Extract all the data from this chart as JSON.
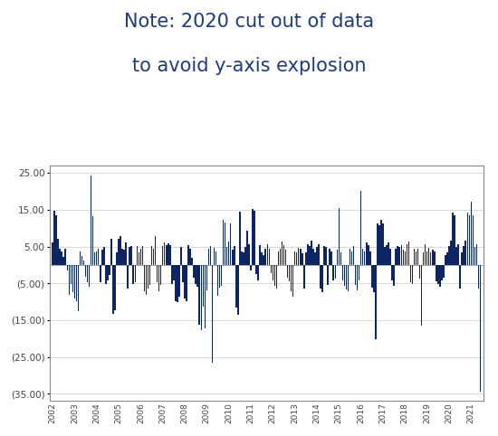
{
  "title_line1": "Note: 2020 cut out of data",
  "title_line2": "to avoid y-axis explosion",
  "title_color": "#1f3d7a",
  "title_fontsize": 15,
  "bar_color": "#0d2663",
  "background_color": "#ffffff",
  "ylim": [
    -37,
    27
  ],
  "yticks": [
    25.0,
    15.0,
    5.0,
    -5.0,
    -15.0,
    -25.0,
    -35.0
  ],
  "ytick_labels": [
    "25.00",
    "15.00",
    "5.00",
    "(5.00)",
    "(15.00)",
    "(25.00)",
    "(35.00)"
  ],
  "monthly_values": [
    6.2,
    14.7,
    13.6,
    7.2,
    4.5,
    3.8,
    2.1,
    4.3,
    -1.5,
    -8.2,
    -5.2,
    -7.3,
    -9.1,
    -9.8,
    -12.5,
    3.8,
    2.4,
    1.2,
    -3.3,
    -4.7,
    -5.8,
    24.3,
    13.2,
    3.5,
    3.8,
    4.3,
    -4.6,
    4.2,
    4.9,
    -5.1,
    -4.3,
    -2.8,
    7.2,
    -13.2,
    -12.3,
    3.5,
    7.1,
    7.8,
    4.5,
    4.1,
    6.2,
    -6.3,
    4.8,
    5.2,
    -5.1,
    -4.8,
    5.1,
    3.5,
    4.3,
    5.1,
    -7.2,
    -8.1,
    -6.3,
    -5.5,
    5.1,
    4.4,
    7.8,
    -4.7,
    -7.2,
    -5.4,
    5.1,
    6.2,
    5.3,
    5.8,
    5.3,
    -5.2,
    -4.1,
    -9.8,
    -10.2,
    -8.7,
    4.9,
    -4.7,
    -9.2,
    -9.8,
    5.3,
    4.4,
    1.9,
    -3.4,
    -5.1,
    -5.8,
    -16.2,
    -17.8,
    -11.2,
    -17.3,
    -6.9,
    4.5,
    5.2,
    -26.5,
    4.6,
    3.8,
    -8.3,
    -6.2,
    -5.7,
    12.2,
    11.5,
    4.8,
    6.3,
    11.3,
    4.1,
    5.2,
    -11.5,
    -13.5,
    14.5,
    3.7,
    3.4,
    4.8,
    9.4,
    5.7,
    -1.5,
    15.2,
    14.8,
    -2.4,
    -4.3,
    5.5,
    3.4,
    2.8,
    4.3,
    5.7,
    4.3,
    -2.3,
    -4.2,
    -5.7,
    -6.3,
    3.8,
    4.3,
    6.5,
    5.4,
    4.2,
    -3.4,
    -4.5,
    -7.2,
    -8.5,
    3.8,
    3.4,
    4.7,
    4.3,
    3.2,
    -6.4,
    3.4,
    5.7,
    5.2,
    6.7,
    4.3,
    3.5,
    4.8,
    5.7,
    -6.3,
    -7.4,
    5.2,
    4.8,
    -5.3,
    4.5,
    3.8,
    -4.2,
    -3.8,
    4.2,
    15.5,
    3.4,
    -4.2,
    -5.6,
    -6.7,
    -7.2,
    4.5,
    3.8,
    5.2,
    -5.4,
    -6.8,
    -4.3,
    20.2,
    4.3,
    3.8,
    6.2,
    5.4,
    3.8,
    -6.2,
    -7.5,
    -20.2,
    11.3,
    10.8,
    12.3,
    11.2,
    4.8,
    5.3,
    6.2,
    4.5,
    -4.2,
    -5.6,
    4.3,
    5.2,
    4.8,
    5.3,
    4.1,
    3.8,
    5.7,
    6.3,
    -4.8,
    -5.2,
    4.5,
    3.8,
    4.3,
    -3.8,
    -16.4,
    3.4,
    5.7,
    3.8,
    4.7,
    3.5,
    4.2,
    3.8,
    -4.5,
    -5.2,
    -5.8,
    -4.3,
    -3.5,
    2.8,
    3.4,
    5.2,
    6.7,
    14.3,
    13.5,
    4.8,
    5.7,
    -6.3,
    3.4,
    5.2,
    6.7,
    14.3,
    13.5,
    17.3,
    13.5,
    4.8,
    5.7,
    -6.3,
    -34.5
  ],
  "year_starts": [
    0,
    12,
    24,
    36,
    48,
    60,
    72,
    84,
    96,
    108,
    120,
    132,
    144,
    156,
    168,
    180,
    192,
    204,
    216,
    228
  ],
  "year_labels": [
    "2002",
    "2003",
    "2004",
    "2005",
    "2006",
    "2007",
    "2008",
    "2009",
    "2010",
    "2011",
    "2012",
    "2013",
    "2014",
    "2015",
    "2016",
    "2017",
    "2018",
    "2019",
    "2020",
    "2021"
  ]
}
